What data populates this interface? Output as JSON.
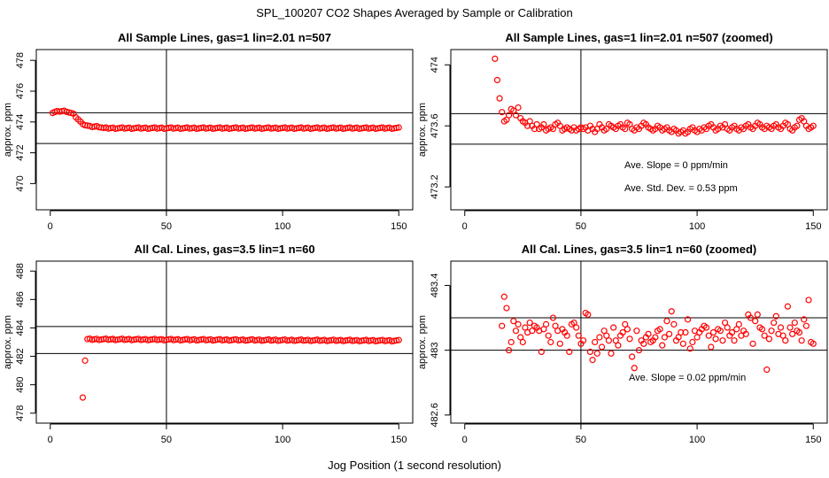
{
  "figure": {
    "title": "SPL_100207  CO2 Shapes Averaged by Sample or Calibration",
    "xlabel": "Jog Position (1 second resolution)"
  },
  "colors": {
    "points": "#ff0000",
    "lines": "#000000"
  },
  "chart_data": [
    {
      "type": "scatter",
      "title": "All Sample Lines, gas=1 lin=2.01 n=507",
      "xlabel": "",
      "ylabel": "approx. ppm",
      "xlim": [
        -6,
        156
      ],
      "ylim": [
        468.3,
        478.7
      ],
      "xticks": [
        0,
        50,
        100,
        150
      ],
      "yticks": [
        470,
        472,
        474,
        476,
        478
      ],
      "vline": 50,
      "hlines": [
        474.6,
        472.6
      ],
      "point_groups": [
        {
          "x": [
            1,
            15
          ],
          "y": [
            474.6,
            473.8
          ]
        },
        {
          "x": [
            1,
            4,
            7,
            10,
            13,
            15,
            17,
            19,
            21,
            23,
            150
          ],
          "y": [
            474.6,
            474.7,
            474.7,
            474.5,
            474.0,
            473.8,
            473.7,
            473.7,
            473.7,
            473.6,
            473.6
          ],
          "interpolate": true
        }
      ]
    },
    {
      "type": "scatter",
      "title": "All Sample Lines, gas=1 lin=2.01 n=507 (zoomed)",
      "xlabel": "",
      "ylabel": "approx. ppm",
      "xlim": [
        -6,
        156
      ],
      "ylim": [
        473.05,
        474.1
      ],
      "xticks": [
        0,
        50,
        100,
        150
      ],
      "yticks": [
        473.2,
        473.6,
        474.0
      ],
      "vline": 50,
      "hlines": [
        473.68,
        473.48
      ],
      "annotations": [
        "Ave. Slope =  0  ppm/min",
        "Ave. Std. Dev. =  0.53  ppm"
      ],
      "points": [
        [
          12,
          474.13
        ],
        [
          13,
          474.04
        ],
        [
          14,
          473.9
        ],
        [
          15,
          473.78
        ],
        [
          16,
          473.69
        ],
        [
          17,
          473.63
        ],
        [
          18,
          473.64
        ],
        [
          19,
          473.67
        ],
        [
          20,
          473.71
        ],
        [
          21,
          473.7
        ],
        [
          22,
          473.67
        ],
        [
          23,
          473.72
        ],
        [
          24,
          473.65
        ],
        [
          25,
          473.63
        ],
        [
          26,
          473.62
        ],
        [
          27,
          473.6
        ],
        [
          28,
          473.63
        ],
        [
          29,
          473.6
        ],
        [
          30,
          473.58
        ],
        [
          31,
          473.61
        ],
        [
          32,
          473.58
        ],
        [
          33,
          473.59
        ],
        [
          34,
          473.61
        ],
        [
          35,
          473.57
        ],
        [
          36,
          473.58
        ],
        [
          37,
          473.59
        ],
        [
          38,
          473.58
        ],
        [
          39,
          473.61
        ],
        [
          40,
          473.62
        ],
        [
          41,
          473.6
        ],
        [
          42,
          473.57
        ],
        [
          43,
          473.58
        ],
        [
          44,
          473.59
        ],
        [
          45,
          473.58
        ],
        [
          46,
          473.57
        ],
        [
          47,
          473.59
        ],
        [
          48,
          473.57
        ],
        [
          49,
          473.58
        ],
        [
          50,
          473.59
        ],
        [
          51,
          473.58
        ],
        [
          52,
          473.59
        ],
        [
          53,
          473.57
        ],
        [
          54,
          473.6
        ],
        [
          55,
          473.58
        ],
        [
          56,
          473.56
        ],
        [
          57,
          473.58
        ],
        [
          58,
          473.61
        ],
        [
          59,
          473.59
        ],
        [
          60,
          473.57
        ],
        [
          61,
          473.58
        ],
        [
          62,
          473.61
        ],
        [
          63,
          473.6
        ],
        [
          64,
          473.59
        ],
        [
          65,
          473.58
        ],
        [
          66,
          473.6
        ],
        [
          67,
          473.61
        ],
        [
          68,
          473.59
        ],
        [
          69,
          473.58
        ],
        [
          70,
          473.62
        ],
        [
          71,
          473.61
        ],
        [
          72,
          473.58
        ],
        [
          73,
          473.57
        ],
        [
          74,
          473.59
        ],
        [
          75,
          473.58
        ],
        [
          76,
          473.6
        ],
        [
          77,
          473.62
        ],
        [
          78,
          473.61
        ],
        [
          79,
          473.59
        ],
        [
          80,
          473.58
        ],
        [
          81,
          473.57
        ],
        [
          82,
          473.58
        ],
        [
          83,
          473.6
        ],
        [
          84,
          473.59
        ],
        [
          85,
          473.57
        ],
        [
          86,
          473.58
        ],
        [
          87,
          473.59
        ],
        [
          88,
          473.57
        ],
        [
          89,
          473.56
        ],
        [
          90,
          473.58
        ],
        [
          91,
          473.57
        ],
        [
          92,
          473.55
        ],
        [
          93,
          473.56
        ],
        [
          94,
          473.57
        ],
        [
          95,
          473.55
        ],
        [
          96,
          473.56
        ],
        [
          97,
          473.58
        ],
        [
          98,
          473.59
        ],
        [
          99,
          473.57
        ],
        [
          100,
          473.56
        ],
        [
          101,
          473.58
        ],
        [
          102,
          473.57
        ],
        [
          103,
          473.59
        ],
        [
          104,
          473.58
        ],
        [
          105,
          473.6
        ],
        [
          106,
          473.61
        ],
        [
          107,
          473.59
        ],
        [
          108,
          473.57
        ],
        [
          109,
          473.58
        ],
        [
          110,
          473.6
        ],
        [
          111,
          473.59
        ],
        [
          112,
          473.61
        ],
        [
          113,
          473.58
        ],
        [
          114,
          473.57
        ],
        [
          115,
          473.59
        ],
        [
          116,
          473.6
        ],
        [
          117,
          473.58
        ],
        [
          118,
          473.57
        ],
        [
          119,
          473.59
        ],
        [
          120,
          473.58
        ],
        [
          121,
          473.6
        ],
        [
          122,
          473.61
        ],
        [
          123,
          473.59
        ],
        [
          124,
          473.58
        ],
        [
          125,
          473.6
        ],
        [
          126,
          473.62
        ],
        [
          127,
          473.61
        ],
        [
          128,
          473.59
        ],
        [
          129,
          473.58
        ],
        [
          130,
          473.6
        ],
        [
          131,
          473.59
        ],
        [
          132,
          473.58
        ],
        [
          133,
          473.6
        ],
        [
          134,
          473.61
        ],
        [
          135,
          473.59
        ],
        [
          136,
          473.58
        ],
        [
          137,
          473.6
        ],
        [
          138,
          473.62
        ],
        [
          139,
          473.61
        ],
        [
          140,
          473.58
        ],
        [
          141,
          473.57
        ],
        [
          142,
          473.59
        ],
        [
          143,
          473.6
        ],
        [
          144,
          473.64
        ],
        [
          145,
          473.65
        ],
        [
          146,
          473.63
        ],
        [
          147,
          473.6
        ],
        [
          148,
          473.58
        ],
        [
          149,
          473.59
        ],
        [
          150,
          473.6
        ]
      ]
    },
    {
      "type": "scatter",
      "title": "All Cal. Lines, gas=3.5 lin=1 n=60",
      "xlabel": "",
      "ylabel": "approx. ppm",
      "xlim": [
        -6,
        156
      ],
      "ylim": [
        477.3,
        488.7
      ],
      "xticks": [
        0,
        50,
        100,
        150
      ],
      "yticks": [
        478,
        480,
        482,
        484,
        486,
        488
      ],
      "vline": 50,
      "hlines": [
        484.1,
        482.2
      ],
      "points": [
        [
          14,
          479.1
        ],
        [
          15,
          481.7
        ]
      ],
      "point_groups": [
        {
          "x": [
            16,
            18,
            150
          ],
          "y": [
            483.2,
            483.2,
            483.1
          ],
          "interpolate": true
        }
      ]
    },
    {
      "type": "scatter",
      "title": "All Cal. Lines, gas=3.5 lin=1 n=60 (zoomed)",
      "xlabel": "",
      "ylabel": "approx. ppm",
      "xlim": [
        -6,
        156
      ],
      "ylim": [
        482.55,
        483.55
      ],
      "xticks": [
        0,
        50,
        100,
        150
      ],
      "yticks": [
        482.6,
        483.0,
        483.4
      ],
      "vline": 50,
      "hlines": [
        483.2,
        483.0
      ],
      "annotations": [
        "Ave. Slope =  0.02  ppm/min"
      ],
      "points": [
        [
          16,
          483.15
        ],
        [
          17,
          483.33
        ],
        [
          18,
          483.26
        ],
        [
          19,
          483.0
        ],
        [
          20,
          483.05
        ],
        [
          21,
          483.18
        ],
        [
          22,
          483.12
        ],
        [
          23,
          483.16
        ],
        [
          24,
          483.08
        ],
        [
          25,
          483.05
        ],
        [
          26,
          483.14
        ],
        [
          27,
          483.11
        ],
        [
          28,
          483.17
        ],
        [
          29,
          483.12
        ],
        [
          30,
          483.15
        ],
        [
          31,
          483.14
        ],
        [
          32,
          483.12
        ],
        [
          33,
          482.99
        ],
        [
          34,
          483.13
        ],
        [
          35,
          483.16
        ],
        [
          36,
          483.09
        ],
        [
          37,
          483.05
        ],
        [
          38,
          483.2
        ],
        [
          39,
          483.15
        ],
        [
          40,
          483.12
        ],
        [
          41,
          483.04
        ],
        [
          42,
          483.13
        ],
        [
          43,
          483.11
        ],
        [
          44,
          483.09
        ],
        [
          45,
          482.99
        ],
        [
          46,
          483.16
        ],
        [
          47,
          483.17
        ],
        [
          48,
          483.14
        ],
        [
          49,
          483.09
        ],
        [
          50,
          483.04
        ],
        [
          51,
          483.06
        ],
        [
          52,
          483.23
        ],
        [
          53,
          483.22
        ],
        [
          54,
          482.99
        ],
        [
          55,
          482.94
        ],
        [
          56,
          483.05
        ],
        [
          57,
          482.98
        ],
        [
          58,
          483.08
        ],
        [
          59,
          483.02
        ],
        [
          60,
          483.12
        ],
        [
          61,
          483.09
        ],
        [
          62,
          483.06
        ],
        [
          63,
          482.98
        ],
        [
          64,
          483.14
        ],
        [
          65,
          483.06
        ],
        [
          66,
          483.03
        ],
        [
          67,
          483.09
        ],
        [
          68,
          483.11
        ],
        [
          69,
          483.16
        ],
        [
          70,
          483.13
        ],
        [
          71,
          483.07
        ],
        [
          72,
          482.96
        ],
        [
          73,
          482.89
        ],
        [
          74,
          483.12
        ],
        [
          75,
          483.0
        ],
        [
          76,
          483.06
        ],
        [
          77,
          483.04
        ],
        [
          78,
          483.08
        ],
        [
          79,
          483.1
        ],
        [
          80,
          483.05
        ],
        [
          81,
          483.06
        ],
        [
          82,
          483.08
        ],
        [
          83,
          483.12
        ],
        [
          84,
          483.13
        ],
        [
          85,
          483.03
        ],
        [
          86,
          483.08
        ],
        [
          87,
          483.18
        ],
        [
          88,
          483.1
        ],
        [
          89,
          483.24
        ],
        [
          90,
          483.16
        ],
        [
          91,
          483.06
        ],
        [
          92,
          483.08
        ],
        [
          93,
          483.11
        ],
        [
          94,
          483.04
        ],
        [
          95,
          483.11
        ],
        [
          96,
          483.19
        ],
        [
          97,
          483.01
        ],
        [
          98,
          483.05
        ],
        [
          99,
          483.12
        ],
        [
          100,
          483.08
        ],
        [
          101,
          483.11
        ],
        [
          102,
          483.13
        ],
        [
          103,
          483.15
        ],
        [
          104,
          483.14
        ],
        [
          105,
          483.09
        ],
        [
          106,
          483.02
        ],
        [
          107,
          483.11
        ],
        [
          108,
          483.07
        ],
        [
          109,
          483.13
        ],
        [
          110,
          483.12
        ],
        [
          111,
          483.06
        ],
        [
          112,
          483.17
        ],
        [
          113,
          483.14
        ],
        [
          114,
          483.09
        ],
        [
          115,
          483.11
        ],
        [
          116,
          483.06
        ],
        [
          117,
          483.13
        ],
        [
          118,
          483.16
        ],
        [
          119,
          483.09
        ],
        [
          120,
          483.12
        ],
        [
          121,
          483.1
        ],
        [
          122,
          483.22
        ],
        [
          123,
          483.2
        ],
        [
          124,
          483.04
        ],
        [
          125,
          483.18
        ],
        [
          126,
          483.22
        ],
        [
          127,
          483.14
        ],
        [
          128,
          483.13
        ],
        [
          129,
          483.09
        ],
        [
          130,
          482.88
        ],
        [
          131,
          483.07
        ],
        [
          132,
          483.12
        ],
        [
          133,
          483.17
        ],
        [
          134,
          483.21
        ],
        [
          135,
          483.1
        ],
        [
          136,
          483.14
        ],
        [
          137,
          483.09
        ],
        [
          138,
          483.06
        ],
        [
          139,
          483.27
        ],
        [
          140,
          483.14
        ],
        [
          141,
          483.1
        ],
        [
          142,
          483.17
        ],
        [
          143,
          483.12
        ],
        [
          144,
          483.11
        ],
        [
          145,
          483.06
        ],
        [
          146,
          483.19
        ],
        [
          147,
          483.15
        ],
        [
          148,
          483.31
        ],
        [
          149,
          483.05
        ],
        [
          150,
          483.04
        ]
      ]
    }
  ]
}
